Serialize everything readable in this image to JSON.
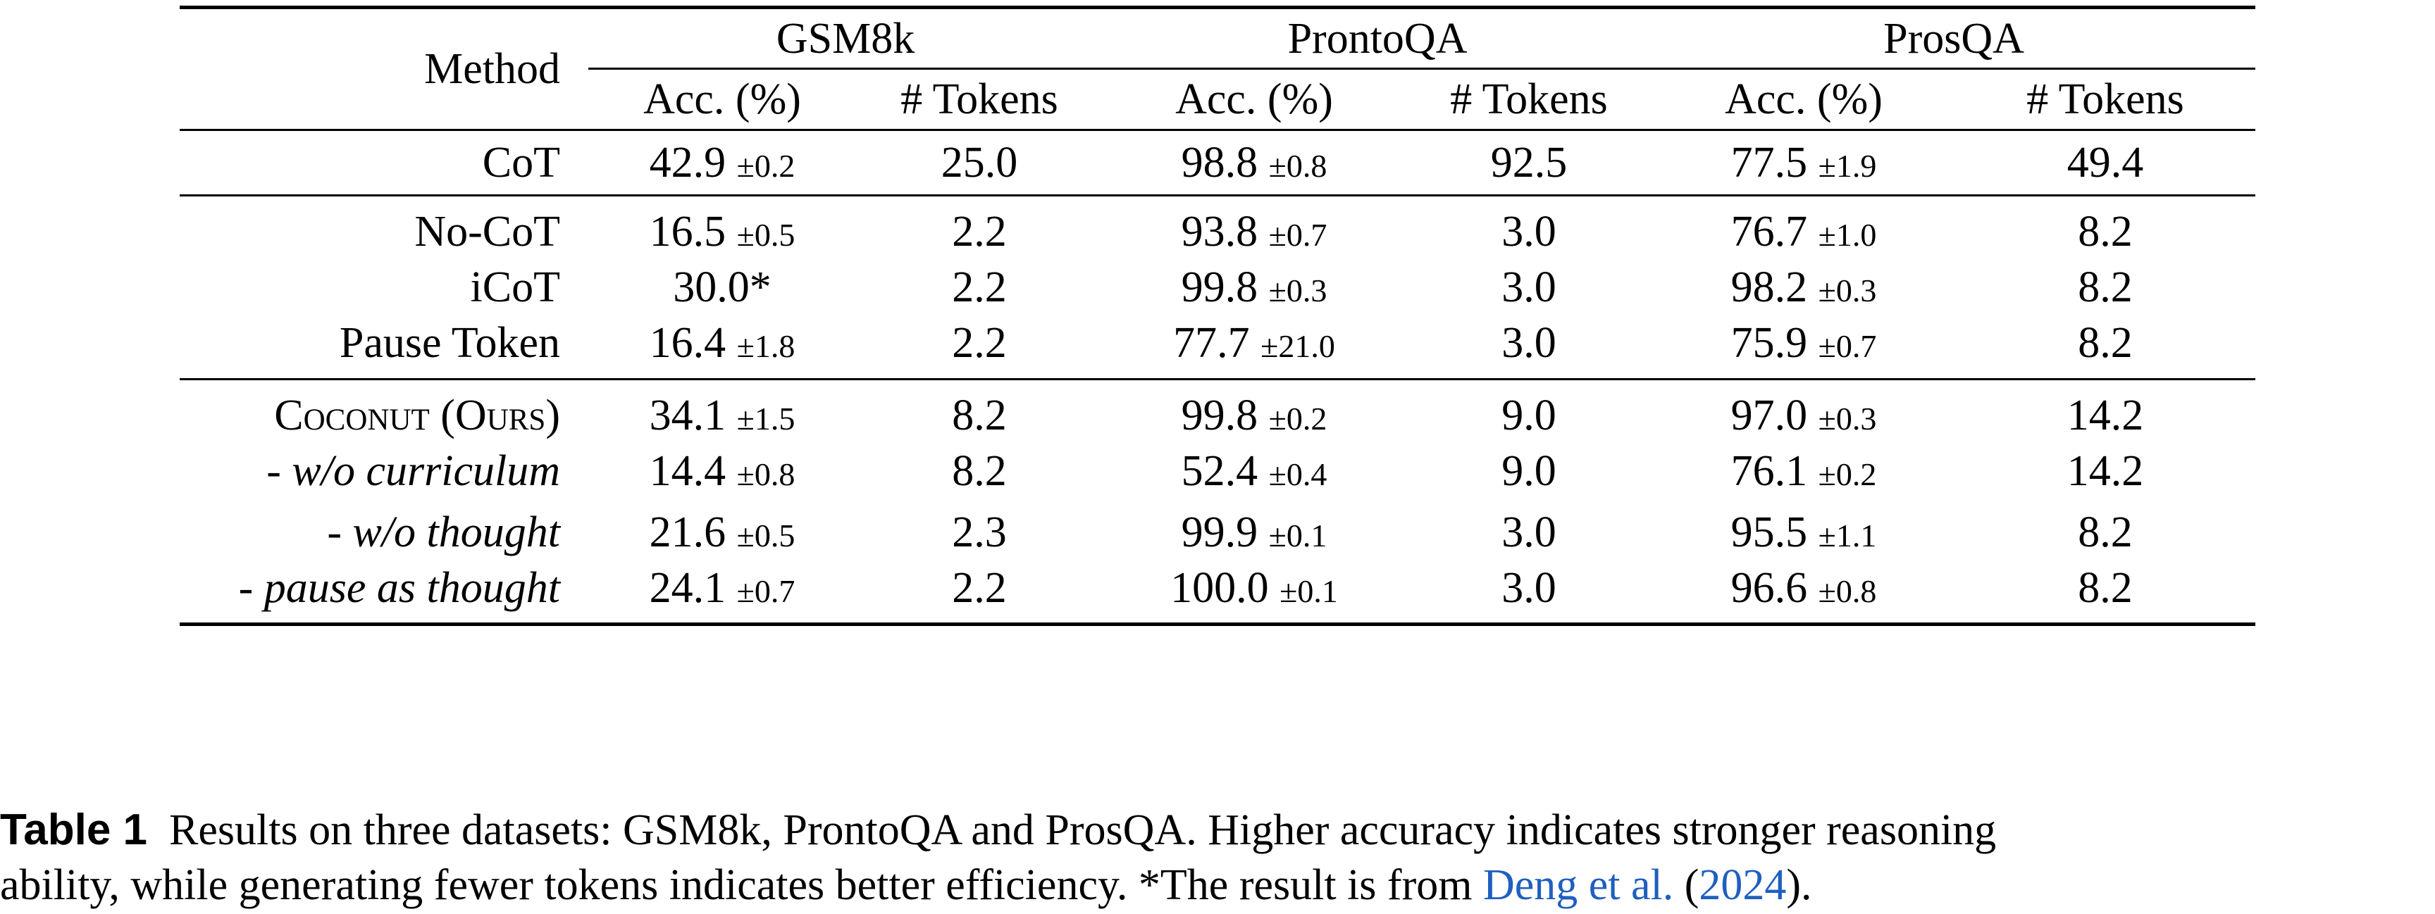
{
  "table": {
    "method_header": "Method",
    "groups": [
      "GSM8k",
      "ProntoQA",
      "ProsQA"
    ],
    "subheaders": [
      "Acc. (%)",
      "# Tokens",
      "Acc. (%)",
      "# Tokens",
      "Acc. (%)",
      "# Tokens"
    ],
    "rows": [
      {
        "method": "CoT",
        "style": "normal",
        "cells": [
          {
            "v": "42.9",
            "sd": "±0.2"
          },
          {
            "v": "25.0"
          },
          {
            "v": "98.8",
            "sd": "±0.8"
          },
          {
            "v": "92.5"
          },
          {
            "v": "77.5",
            "sd": "±1.9"
          },
          {
            "v": "49.4"
          }
        ]
      },
      {
        "method": "No-CoT",
        "style": "normal",
        "cells": [
          {
            "v": "16.5",
            "sd": "±0.5"
          },
          {
            "v": "2.2"
          },
          {
            "v": "93.8",
            "sd": "±0.7"
          },
          {
            "v": "3.0"
          },
          {
            "v": "76.7",
            "sd": "±1.0"
          },
          {
            "v": "8.2"
          }
        ]
      },
      {
        "method": "iCoT",
        "style": "normal",
        "cells": [
          {
            "v": "30.0*"
          },
          {
            "v": "2.2"
          },
          {
            "v": "99.8",
            "sd": "±0.3"
          },
          {
            "v": "3.0"
          },
          {
            "v": "98.2",
            "sd": "±0.3"
          },
          {
            "v": "8.2"
          }
        ]
      },
      {
        "method": "Pause Token",
        "style": "normal",
        "cells": [
          {
            "v": "16.4",
            "sd": "±1.8"
          },
          {
            "v": "2.2"
          },
          {
            "v": "77.7",
            "sd": "±21.0"
          },
          {
            "v": "3.0"
          },
          {
            "v": "75.9",
            "sd": "±0.7"
          },
          {
            "v": "8.2"
          }
        ]
      },
      {
        "method": "Coconut (Ours)",
        "style": "smallcaps",
        "cells": [
          {
            "v": "34.1",
            "sd": "±1.5"
          },
          {
            "v": "8.2"
          },
          {
            "v": "99.8",
            "sd": "±0.2"
          },
          {
            "v": "9.0"
          },
          {
            "v": "97.0",
            "sd": "±0.3"
          },
          {
            "v": "14.2"
          }
        ]
      },
      {
        "method": "- w/o curriculum",
        "style": "italic",
        "cells": [
          {
            "v": "14.4",
            "sd": "±0.8"
          },
          {
            "v": "8.2"
          },
          {
            "v": "52.4",
            "sd": "±0.4"
          },
          {
            "v": "9.0"
          },
          {
            "v": "76.1",
            "sd": "±0.2"
          },
          {
            "v": "14.2"
          }
        ]
      },
      {
        "method": "- w/o thought",
        "style": "italic",
        "cells": [
          {
            "v": "21.6",
            "sd": "±0.5"
          },
          {
            "v": "2.3"
          },
          {
            "v": "99.9",
            "sd": "±0.1"
          },
          {
            "v": "3.0"
          },
          {
            "v": "95.5",
            "sd": "±1.1"
          },
          {
            "v": "8.2"
          }
        ]
      },
      {
        "method": "- pause as thought",
        "style": "italic",
        "cells": [
          {
            "v": "24.1",
            "sd": "±0.7"
          },
          {
            "v": "2.2"
          },
          {
            "v": "100.0",
            "sd": "±0.1"
          },
          {
            "v": "3.0"
          },
          {
            "v": "96.6",
            "sd": "±0.8"
          },
          {
            "v": "8.2"
          }
        ]
      }
    ]
  },
  "caption": {
    "label": "Table 1",
    "text_line1": "Results on three datasets: GSM8k, ProntoQA and ProsQA. Higher accuracy indicates stronger reasoning",
    "text_line2": "ability, while generating fewer tokens indicates better efficiency. *The result is from",
    "cite_author": "Deng et al.",
    "cite_open": "(",
    "cite_year": "2024",
    "cite_close": ")."
  },
  "colors": {
    "link": "#1f5fbf"
  }
}
